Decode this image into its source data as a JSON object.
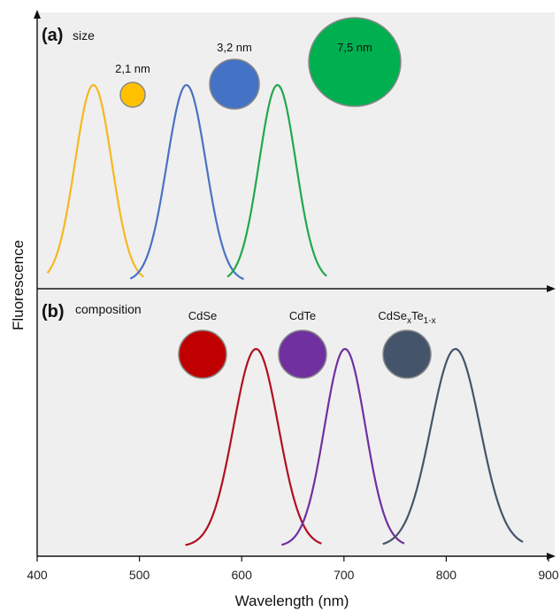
{
  "chart_data": {
    "type": "line",
    "xlabel": "Wavelength (nm)",
    "ylabel": "Fluorescence",
    "xlim": [
      400,
      900
    ],
    "xticks": [
      400,
      500,
      600,
      700,
      800,
      900
    ],
    "grid": false,
    "panels": [
      {
        "letter": "(a)",
        "description": "size",
        "series": [
          {
            "peak_nm": 455,
            "sigma_nm": 18,
            "range_nm": [
              410,
              504
            ],
            "color": "#f5b820"
          },
          {
            "peak_nm": 546,
            "sigma_nm": 19,
            "range_nm": [
              491,
              602
            ],
            "color": "#4a72c2"
          },
          {
            "peak_nm": 635,
            "sigma_nm": 18,
            "range_nm": [
              586,
              683
            ],
            "color": "#22a84a"
          }
        ],
        "particles": [
          {
            "label": "2,1 nm",
            "color": "#ffc000",
            "label_position": "above"
          },
          {
            "label": "3,2 nm",
            "color": "#4472c4",
            "label_position": "above"
          },
          {
            "label": "7,5 nm",
            "color": "#00b050",
            "label_position": "inside"
          }
        ]
      },
      {
        "letter": "(b)",
        "description": "composition",
        "series": [
          {
            "peak_nm": 614,
            "sigma_nm": 22,
            "range_nm": [
              545,
              678
            ],
            "color": "#b01020"
          },
          {
            "peak_nm": 701,
            "sigma_nm": 20,
            "range_nm": [
              639,
              759
            ],
            "color": "#7030a0"
          },
          {
            "peak_nm": 809,
            "sigma_nm": 24,
            "range_nm": [
              738,
              875
            ],
            "color": "#44546a"
          }
        ],
        "particles": [
          {
            "label": "CdSe",
            "color": "#c00000"
          },
          {
            "label": "CdTe",
            "color": "#7030a0"
          },
          {
            "label_main": "CdSe",
            "sub1": "x",
            "mid": "Te",
            "sub2": "1-x",
            "color": "#44546a"
          }
        ]
      }
    ]
  }
}
